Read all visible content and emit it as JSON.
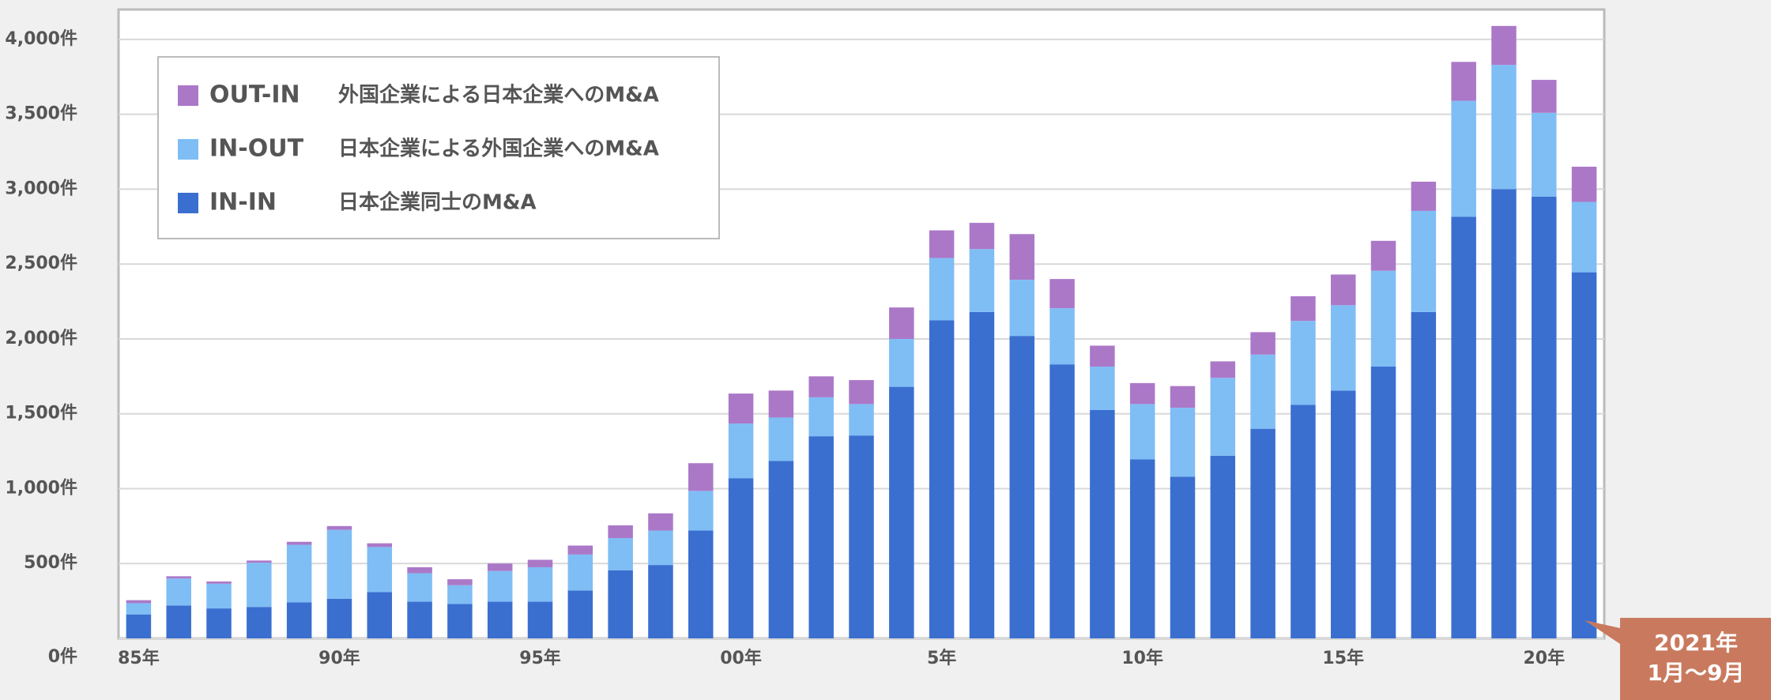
{
  "chart_data": {
    "type": "stacked_bar",
    "categories": [
      "85年",
      null,
      null,
      null,
      null,
      "90年",
      null,
      null,
      null,
      null,
      "95年",
      null,
      null,
      null,
      null,
      "00年",
      null,
      null,
      null,
      null,
      "5年",
      null,
      null,
      null,
      null,
      "10年",
      null,
      null,
      null,
      null,
      "15年",
      null,
      null,
      null,
      null,
      "20年",
      null
    ],
    "series": [
      {
        "name": "IN-IN",
        "description": "日本企業同士のM&A",
        "color": "#3a6fd0",
        "values": [
          160,
          220,
          200,
          210,
          240,
          265,
          310,
          245,
          230,
          245,
          245,
          320,
          455,
          490,
          720,
          1070,
          1185,
          1350,
          1355,
          1680,
          2125,
          2180,
          2020,
          1830,
          1525,
          1195,
          1080,
          1220,
          1400,
          1560,
          1655,
          1815,
          2180,
          2815,
          3000,
          2950,
          2445
        ]
      },
      {
        "name": "IN-OUT",
        "description": "日本企業による外国企業へのM&A",
        "color": "#7fbdf5",
        "values": [
          75,
          180,
          165,
          295,
          385,
          460,
          300,
          190,
          125,
          205,
          230,
          240,
          215,
          230,
          265,
          365,
          290,
          260,
          210,
          320,
          415,
          420,
          375,
          375,
          290,
          370,
          460,
          520,
          495,
          560,
          570,
          640,
          675,
          775,
          830,
          560,
          470
        ]
      },
      {
        "name": "OUT-IN",
        "description": "外国企業による日本企業へのM&A",
        "color": "#ab78c8",
        "values": [
          20,
          15,
          15,
          15,
          20,
          25,
          25,
          40,
          40,
          50,
          50,
          60,
          85,
          115,
          185,
          200,
          180,
          140,
          160,
          210,
          185,
          175,
          305,
          195,
          140,
          140,
          145,
          110,
          150,
          165,
          205,
          200,
          195,
          260,
          260,
          220,
          235
        ]
      }
    ],
    "ylim": [
      0,
      4200
    ],
    "yticks": [
      {
        "value": 0,
        "label": "0件"
      },
      {
        "value": 500,
        "label": "500件"
      },
      {
        "value": 1000,
        "label": "1,000件"
      },
      {
        "value": 1500,
        "label": "1,500件"
      },
      {
        "value": 2000,
        "label": "2,000件"
      },
      {
        "value": 2500,
        "label": "2,500件"
      },
      {
        "value": 3000,
        "label": "3,000件"
      },
      {
        "value": 3500,
        "label": "3,500件"
      },
      {
        "value": 4000,
        "label": "4,000件"
      }
    ],
    "grid": true,
    "legend": "upper left",
    "annotation": [
      "2021年",
      "1月～9月"
    ]
  }
}
